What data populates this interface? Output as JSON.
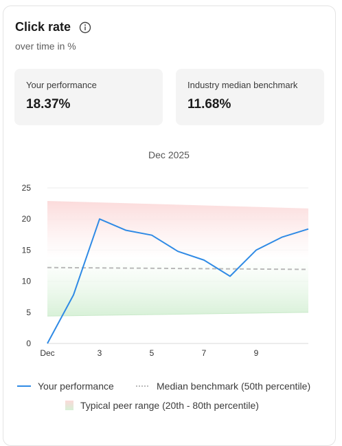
{
  "card": {
    "title": "Click rate",
    "subtitle": "over time in %"
  },
  "kpis": [
    {
      "label": "Your performance",
      "value": "18.37%"
    },
    {
      "label": "Industry median benchmark",
      "value": "11.68%"
    }
  ],
  "legend": {
    "performance": "Your performance",
    "median": "Median benchmark (50th percentile)",
    "range": "Typical peer range (20th - 80th percentile)"
  },
  "colors": {
    "performance": "#2f8ae5",
    "median": "#b9b9b9",
    "range_top": "#fbd9d9",
    "range_bottom": "#d6f0d6"
  },
  "chart_data": {
    "type": "line",
    "title": "Dec 2025",
    "x_ticks": [
      {
        "x": 1,
        "label": "Dec"
      },
      {
        "x": 3,
        "label": "3"
      },
      {
        "x": 5,
        "label": "5"
      },
      {
        "x": 7,
        "label": "7"
      },
      {
        "x": 9,
        "label": "9"
      }
    ],
    "xlim": [
      1,
      11
    ],
    "ylim": [
      0,
      25
    ],
    "y_ticks": [
      0,
      5,
      10,
      15,
      20,
      25
    ],
    "grid": true,
    "series": [
      {
        "name": "Your performance",
        "x": [
          1,
          2,
          3,
          4,
          5,
          6,
          7,
          8,
          9,
          10,
          11
        ],
        "y": [
          0,
          7.8,
          20.0,
          18.2,
          17.4,
          14.8,
          13.4,
          10.8,
          15.0,
          17.1,
          18.4
        ]
      },
      {
        "name": "Median benchmark (50th percentile)",
        "x": [
          1,
          11
        ],
        "y": [
          12.2,
          11.9
        ]
      }
    ],
    "range_band": {
      "name": "Typical peer range (20th - 80th percentile)",
      "x": [
        1,
        11
      ],
      "upper": [
        22.9,
        21.7
      ],
      "lower": [
        4.4,
        5.0
      ]
    }
  }
}
